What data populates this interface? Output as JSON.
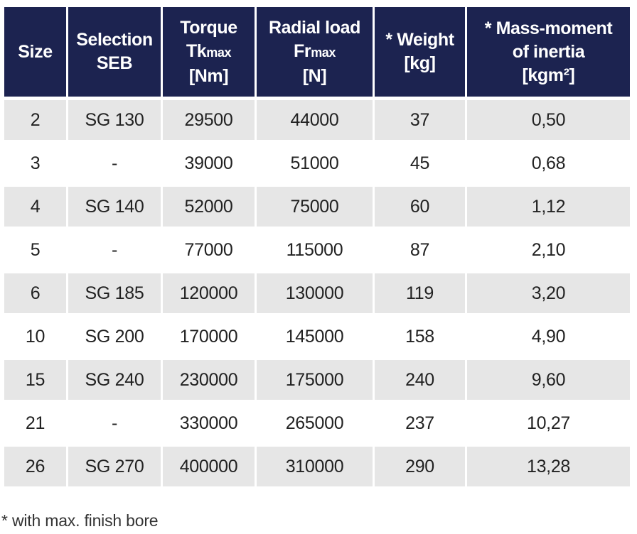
{
  "table": {
    "headers": [
      {
        "lines": [
          "Size"
        ]
      },
      {
        "lines": [
          "Selection",
          "SEB"
        ]
      },
      {
        "lines": [
          "Torque"
        ],
        "main": "Tk",
        "sub": "max",
        "unit": "[Nm]"
      },
      {
        "lines": [
          "Radial load"
        ],
        "main": "Fr",
        "sub": "max",
        "unit": "[N]"
      },
      {
        "lines": [
          "* Weight",
          "[kg]"
        ]
      },
      {
        "lines": [
          "* Mass-moment",
          "of inertia"
        ],
        "unit": "[kgm²]"
      }
    ],
    "rows": [
      {
        "size": "2",
        "selection": "SG 130",
        "torque": "29500",
        "radial": "44000",
        "weight": "37",
        "inertia": "0,50"
      },
      {
        "size": "3",
        "selection": "-",
        "torque": "39000",
        "radial": "51000",
        "weight": "45",
        "inertia": "0,68"
      },
      {
        "size": "4",
        "selection": "SG 140",
        "torque": "52000",
        "radial": "75000",
        "weight": "60",
        "inertia": "1,12"
      },
      {
        "size": "5",
        "selection": "-",
        "torque": "77000",
        "radial": "115000",
        "weight": "87",
        "inertia": "2,10"
      },
      {
        "size": "6",
        "selection": "SG 185",
        "torque": "120000",
        "radial": "130000",
        "weight": "119",
        "inertia": "3,20"
      },
      {
        "size": "10",
        "selection": "SG 200",
        "torque": "170000",
        "radial": "145000",
        "weight": "158",
        "inertia": "4,90"
      },
      {
        "size": "15",
        "selection": "SG 240",
        "torque": "230000",
        "radial": "175000",
        "weight": "240",
        "inertia": "9,60"
      },
      {
        "size": "21",
        "selection": "-",
        "torque": "330000",
        "radial": "265000",
        "weight": "237",
        "inertia": "10,27"
      },
      {
        "size": "26",
        "selection": "SG 270",
        "torque": "400000",
        "radial": "310000",
        "weight": "290",
        "inertia": "13,28"
      }
    ]
  },
  "footnote": "* with max. finish bore",
  "colors": {
    "header_bg": "#1c2350",
    "header_text": "#ffffff",
    "row_shade": "#e6e6e6",
    "body_text": "#222222"
  }
}
